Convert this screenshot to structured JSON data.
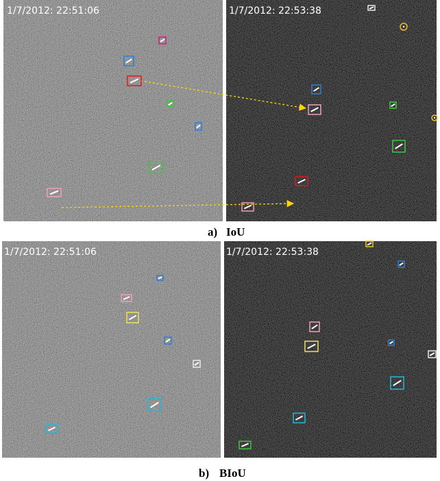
{
  "figures": [
    {
      "label": "a)",
      "method": "IoU",
      "panels": [
        {
          "timestamp": "1/7/2012: 22:51:06"
        },
        {
          "timestamp": "1/7/2012: 22:53:38"
        }
      ]
    },
    {
      "label": "b)",
      "method": "BIoU",
      "panels": [
        {
          "timestamp": "1/7/2012: 22:51:06"
        },
        {
          "timestamp": "1/7/2012: 22:53:38"
        }
      ]
    }
  ]
}
